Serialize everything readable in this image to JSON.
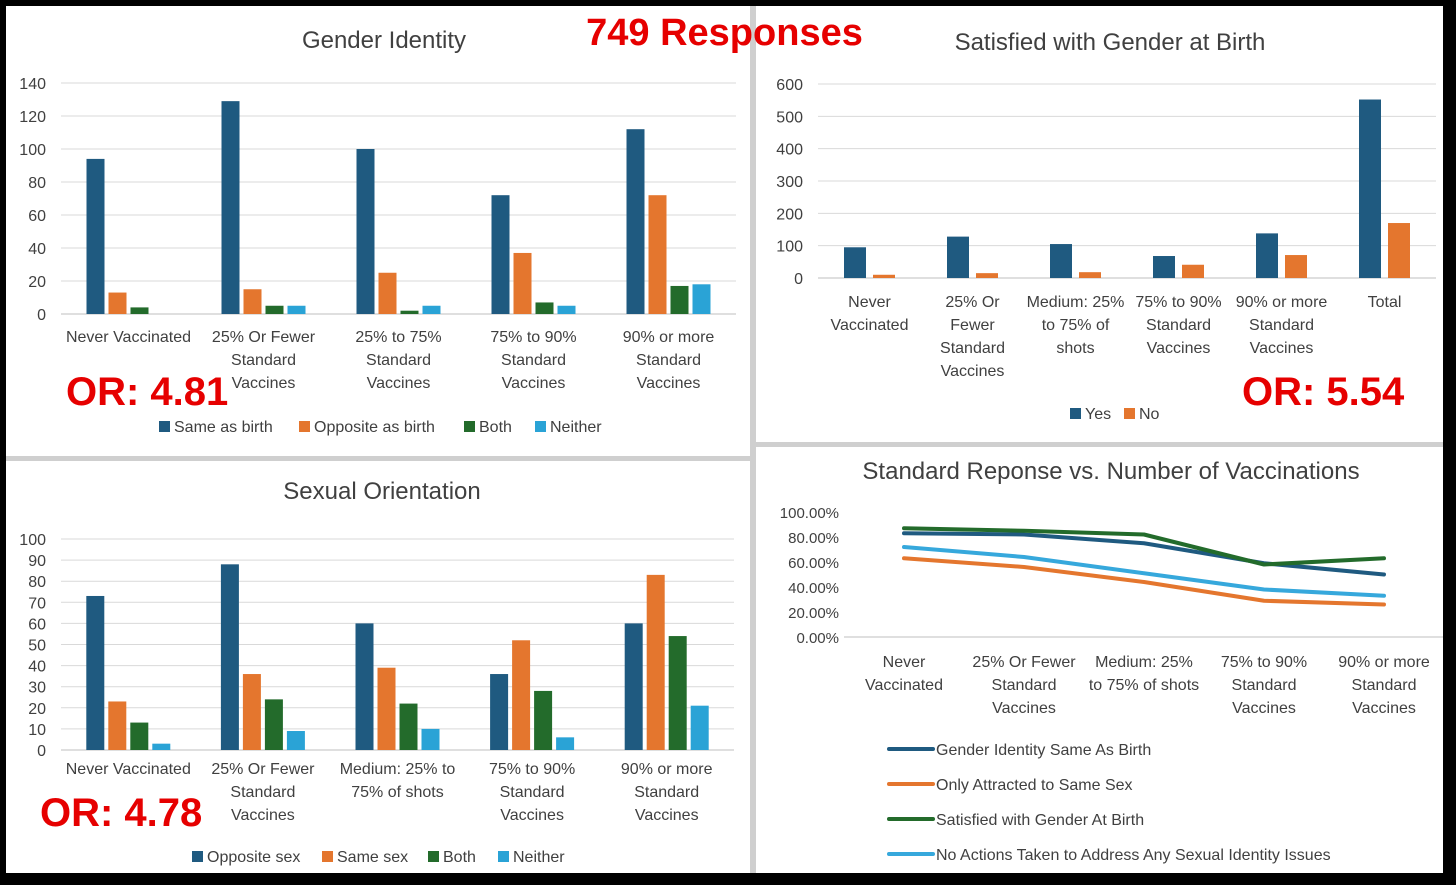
{
  "headline": "749 Responses",
  "colors": {
    "navy": "#1f5a80",
    "orange": "#e4762e",
    "green": "#236b2b",
    "cyan": "#2aa3d6",
    "lightblue": "#36a8dc",
    "accent_red": "#e60000"
  },
  "panels": {
    "gender_identity": {
      "or_label": "OR: 4.81"
    },
    "satisfied": {
      "or_label": "OR: 5.54"
    },
    "sexual_orientation": {
      "or_label": "OR: 4.78"
    }
  },
  "chart_data": [
    {
      "id": "gender_identity",
      "type": "bar",
      "title": "Gender Identity",
      "categories": [
        [
          "Never Vaccinated"
        ],
        [
          "25% Or Fewer",
          "Standard",
          "Vaccines"
        ],
        [
          "25% to 75%",
          "Standard",
          "Vaccines"
        ],
        [
          "75% to 90%",
          "Standard",
          "Vaccines"
        ],
        [
          "90% or more",
          "Standard",
          "Vaccines"
        ]
      ],
      "series": [
        {
          "name": "Same as birth",
          "color": "#1f5a80",
          "values": [
            94,
            129,
            100,
            72,
            112
          ]
        },
        {
          "name": "Opposite as birth",
          "color": "#e4762e",
          "values": [
            13,
            15,
            25,
            37,
            72
          ]
        },
        {
          "name": "Both",
          "color": "#236b2b",
          "values": [
            4,
            5,
            2,
            7,
            17
          ]
        },
        {
          "name": "Neither",
          "color": "#2aa3d6",
          "values": [
            0,
            5,
            5,
            5,
            18
          ]
        }
      ],
      "ylim": [
        0,
        140
      ],
      "yticks": [
        0,
        20,
        40,
        60,
        80,
        100,
        120,
        140
      ],
      "grid": true,
      "legend": "bottom"
    },
    {
      "id": "satisfied",
      "type": "bar",
      "title": "Satisfied with Gender at Birth",
      "categories": [
        [
          "Never",
          "Vaccinated"
        ],
        [
          "25% Or",
          "Fewer",
          "Standard",
          "Vaccines"
        ],
        [
          "Medium: 25%",
          "to 75% of",
          "shots"
        ],
        [
          "75% to 90%",
          "Standard",
          "Vaccines"
        ],
        [
          "90% or more",
          "Standard",
          "Vaccines"
        ],
        [
          "Total"
        ]
      ],
      "series": [
        {
          "name": "Yes",
          "color": "#1f5a80",
          "values": [
            95,
            128,
            105,
            68,
            138,
            552
          ]
        },
        {
          "name": "No",
          "color": "#e4762e",
          "values": [
            10,
            15,
            18,
            41,
            71,
            170
          ]
        }
      ],
      "ylim": [
        0,
        600
      ],
      "yticks": [
        0,
        100,
        200,
        300,
        400,
        500,
        600
      ],
      "grid": true,
      "legend": "bottom"
    },
    {
      "id": "sexual_orientation",
      "type": "bar",
      "title": "Sexual Orientation",
      "categories": [
        [
          "Never Vaccinated"
        ],
        [
          "25% Or Fewer",
          "Standard",
          "Vaccines"
        ],
        [
          "Medium: 25% to",
          "75% of shots"
        ],
        [
          "75% to 90%",
          "Standard",
          "Vaccines"
        ],
        [
          "90% or more",
          "Standard",
          "Vaccines"
        ]
      ],
      "series": [
        {
          "name": "Opposite sex",
          "color": "#1f5a80",
          "values": [
            73,
            88,
            60,
            36,
            60
          ]
        },
        {
          "name": "Same sex",
          "color": "#e4762e",
          "values": [
            23,
            36,
            39,
            52,
            83
          ]
        },
        {
          "name": "Both",
          "color": "#236b2b",
          "values": [
            13,
            24,
            22,
            28,
            54
          ]
        },
        {
          "name": "Neither",
          "color": "#2aa3d6",
          "values": [
            3,
            9,
            10,
            6,
            21
          ]
        }
      ],
      "ylim": [
        0,
        100
      ],
      "yticks": [
        0,
        10,
        20,
        30,
        40,
        50,
        60,
        70,
        80,
        90,
        100
      ],
      "grid": true,
      "legend": "bottom"
    },
    {
      "id": "standard_response",
      "type": "line",
      "title": "Standard Reponse vs. Number of Vaccinations",
      "categories": [
        [
          "Never",
          "Vaccinated"
        ],
        [
          "25% Or Fewer",
          "Standard",
          "Vaccines"
        ],
        [
          "Medium: 25%",
          "to 75% of shots"
        ],
        [
          "75% to 90%",
          "Standard",
          "Vaccines"
        ],
        [
          "90% or more",
          "Standard",
          "Vaccines"
        ]
      ],
      "series": [
        {
          "name": "Gender Identity Same As Birth",
          "color": "#1f5a80",
          "values": [
            0.83,
            0.82,
            0.75,
            0.59,
            0.5
          ]
        },
        {
          "name": "Only Attracted to Same Sex",
          "color": "#e4762e",
          "values": [
            0.63,
            0.56,
            0.44,
            0.29,
            0.26
          ]
        },
        {
          "name": "Satisfied with Gender At Birth",
          "color": "#236b2b",
          "values": [
            0.87,
            0.85,
            0.82,
            0.58,
            0.63
          ]
        },
        {
          "name": "No Actions Taken to Address Any Sexual Identity Issues",
          "color": "#36a8dc",
          "values": [
            0.72,
            0.64,
            0.51,
            0.38,
            0.33
          ]
        }
      ],
      "ylim": [
        0,
        1
      ],
      "yticks": [
        "0.00%",
        "20.00%",
        "40.00%",
        "60.00%",
        "80.00%",
        "100.00%"
      ],
      "grid": false,
      "legend": "bottom"
    }
  ]
}
